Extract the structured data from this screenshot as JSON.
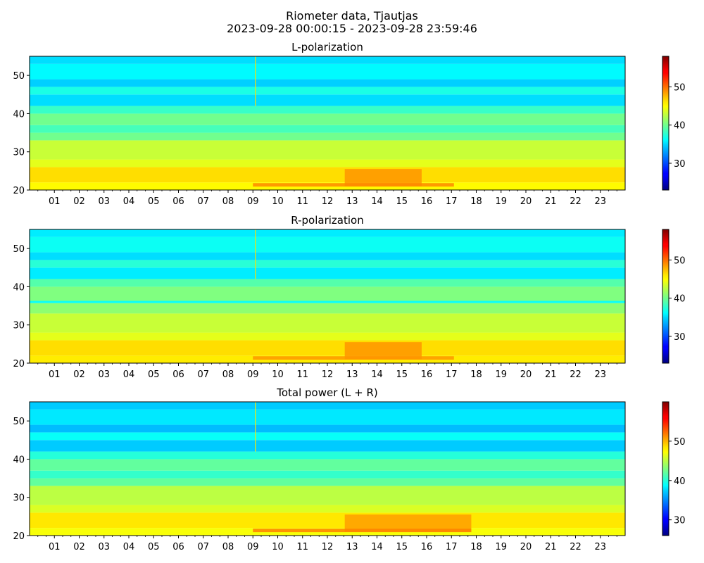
{
  "figure": {
    "title": "Riometer data, Tjautjas",
    "subtitle": "2023-09-28 00:00:15 - 2023-09-28 23:59:46"
  },
  "chart_data": [
    {
      "type": "heatmap",
      "title": "L-polarization",
      "xlabel": "",
      "ylabel": "",
      "x_tick_labels": [
        "01",
        "02",
        "03",
        "04",
        "05",
        "06",
        "07",
        "08",
        "09",
        "10",
        "11",
        "12",
        "13",
        "14",
        "15",
        "16",
        "17",
        "18",
        "19",
        "20",
        "21",
        "22",
        "23"
      ],
      "x_range_hours": [
        0,
        24
      ],
      "y_range": [
        20,
        55
      ],
      "y_ticks": [
        20,
        30,
        40,
        50
      ],
      "colormap": "jet",
      "colorbar": {
        "range": [
          23,
          58
        ],
        "ticks": [
          30,
          40,
          50
        ]
      },
      "bands": [
        {
          "y": [
            20,
            22
          ],
          "value": 45
        },
        {
          "y": [
            22,
            26
          ],
          "value": 46
        },
        {
          "y": [
            26,
            28
          ],
          "value": 44
        },
        {
          "y": [
            28,
            33
          ],
          "value": 43
        },
        {
          "y": [
            33,
            35
          ],
          "value": 40
        },
        {
          "y": [
            35,
            37
          ],
          "value": 38.5
        },
        {
          "y": [
            37,
            40
          ],
          "value": 40
        },
        {
          "y": [
            40,
            42
          ],
          "value": 38
        },
        {
          "y": [
            42,
            45
          ],
          "value": 35
        },
        {
          "y": [
            45,
            47
          ],
          "value": 37
        },
        {
          "y": [
            47,
            49
          ],
          "value": 34.5
        },
        {
          "y": [
            49,
            53
          ],
          "value": 36
        },
        {
          "y": [
            53,
            55
          ],
          "value": 35
        }
      ],
      "enhancements": [
        {
          "hours": [
            12.7,
            15.8
          ],
          "y": [
            21,
            25.5
          ],
          "value": 48.5
        },
        {
          "hours": [
            9.0,
            17.1
          ],
          "y": [
            20.9,
            21.8
          ],
          "value": 49
        }
      ],
      "spike": {
        "hour": 9.1,
        "y": [
          42,
          55
        ],
        "value": 46
      }
    },
    {
      "type": "heatmap",
      "title": "R-polarization",
      "xlabel": "",
      "ylabel": "",
      "x_tick_labels": [
        "01",
        "02",
        "03",
        "04",
        "05",
        "06",
        "07",
        "08",
        "09",
        "10",
        "11",
        "12",
        "13",
        "14",
        "15",
        "16",
        "17",
        "18",
        "19",
        "20",
        "21",
        "22",
        "23"
      ],
      "x_range_hours": [
        0,
        24
      ],
      "y_range": [
        20,
        55
      ],
      "y_ticks": [
        20,
        30,
        40,
        50
      ],
      "colormap": "jet",
      "colorbar": {
        "range": [
          23,
          58
        ],
        "ticks": [
          30,
          40,
          50
        ]
      },
      "bands": [
        {
          "y": [
            20,
            22
          ],
          "value": 45.5
        },
        {
          "y": [
            22,
            26
          ],
          "value": 46
        },
        {
          "y": [
            26,
            28
          ],
          "value": 44
        },
        {
          "y": [
            28,
            33
          ],
          "value": 43
        },
        {
          "y": [
            33,
            35.7
          ],
          "value": 41
        },
        {
          "y": [
            35.7,
            36.3
          ],
          "value": 36.5
        },
        {
          "y": [
            36.3,
            40
          ],
          "value": 40.5
        },
        {
          "y": [
            40,
            42
          ],
          "value": 39
        },
        {
          "y": [
            42,
            45
          ],
          "value": 35.5
        },
        {
          "y": [
            45,
            47
          ],
          "value": 37.5
        },
        {
          "y": [
            47,
            49
          ],
          "value": 35
        },
        {
          "y": [
            49,
            53
          ],
          "value": 36.5
        },
        {
          "y": [
            53,
            55
          ],
          "value": 35.5
        }
      ],
      "enhancements": [
        {
          "hours": [
            12.7,
            15.8
          ],
          "y": [
            21,
            25.5
          ],
          "value": 48.5
        },
        {
          "hours": [
            9.0,
            17.1
          ],
          "y": [
            20.9,
            21.8
          ],
          "value": 48.5
        }
      ],
      "spike": {
        "hour": 9.1,
        "y": [
          42,
          55
        ],
        "value": 46
      }
    },
    {
      "type": "heatmap",
      "title": "Total power (L + R)",
      "xlabel": "",
      "ylabel": "",
      "x_tick_labels": [
        "01",
        "02",
        "03",
        "04",
        "05",
        "06",
        "07",
        "08",
        "09",
        "10",
        "11",
        "12",
        "13",
        "14",
        "15",
        "16",
        "17",
        "18",
        "19",
        "20",
        "21",
        "22",
        "23"
      ],
      "x_range_hours": [
        0,
        24
      ],
      "y_range": [
        20,
        55
      ],
      "y_ticks": [
        20,
        30,
        40,
        50
      ],
      "colormap": "jet",
      "colorbar": {
        "range": [
          26,
          60
        ],
        "ticks": [
          30,
          40,
          50
        ]
      },
      "bands": [
        {
          "y": [
            20,
            22
          ],
          "value": 47
        },
        {
          "y": [
            22,
            26
          ],
          "value": 48
        },
        {
          "y": [
            26,
            28
          ],
          "value": 46
        },
        {
          "y": [
            28,
            33
          ],
          "value": 45
        },
        {
          "y": [
            33,
            35
          ],
          "value": 42
        },
        {
          "y": [
            35,
            37
          ],
          "value": 40.5
        },
        {
          "y": [
            37,
            40
          ],
          "value": 42
        },
        {
          "y": [
            40,
            42
          ],
          "value": 40
        },
        {
          "y": [
            42,
            45
          ],
          "value": 37
        },
        {
          "y": [
            45,
            47
          ],
          "value": 39
        },
        {
          "y": [
            47,
            49
          ],
          "value": 36.5
        },
        {
          "y": [
            49,
            53
          ],
          "value": 38
        },
        {
          "y": [
            53,
            55
          ],
          "value": 37
        }
      ],
      "enhancements": [
        {
          "hours": [
            12.7,
            17.8
          ],
          "y": [
            21,
            25.5
          ],
          "value": 50.5
        },
        {
          "hours": [
            9.0,
            17.8
          ],
          "y": [
            20.9,
            21.8
          ],
          "value": 51.5
        }
      ],
      "spike": {
        "hour": 9.1,
        "y": [
          42,
          55
        ],
        "value": 48
      }
    }
  ]
}
